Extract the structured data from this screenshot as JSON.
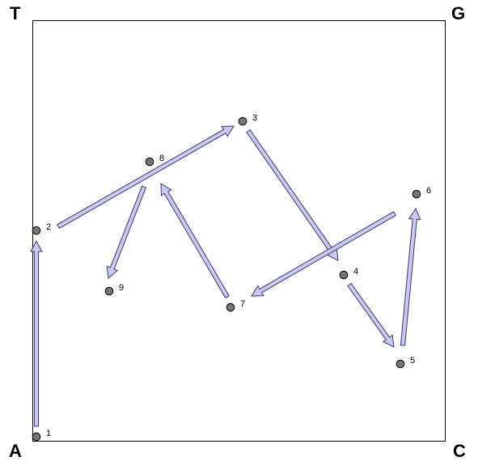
{
  "corners": [
    {
      "id": "top-left",
      "label": "T"
    },
    {
      "id": "top-right",
      "label": "G"
    },
    {
      "id": "bottom-left",
      "label": "A"
    },
    {
      "id": "bottom-right",
      "label": "C"
    }
  ],
  "points": [
    {
      "label": "1"
    },
    {
      "label": "2"
    },
    {
      "label": "3"
    },
    {
      "label": "4"
    },
    {
      "label": "5"
    },
    {
      "label": "6"
    },
    {
      "label": "7"
    },
    {
      "label": "8"
    },
    {
      "label": "9"
    }
  ],
  "path_order": [
    "1",
    "2",
    "3",
    "4",
    "5",
    "6",
    "7",
    "8",
    "9"
  ],
  "colors": {
    "arrow_fill": "#c8c8f0",
    "arrow_stroke": "#3a3a6e",
    "point_fill": "#777777",
    "point_stroke": "#000000",
    "frame": "#000000"
  }
}
